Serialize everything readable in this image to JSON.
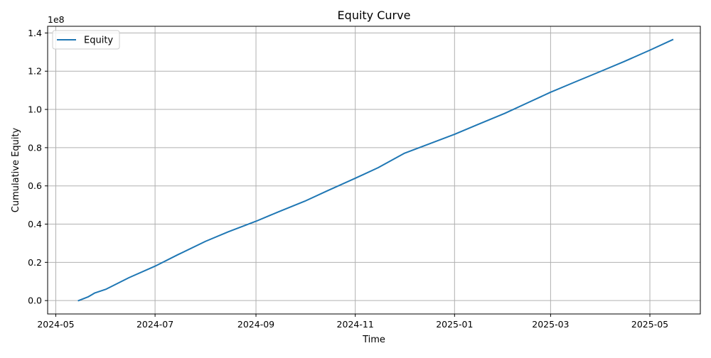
{
  "chart_data": {
    "type": "line",
    "title": "Equity Curve",
    "xlabel": "Time",
    "ylabel": "Cumulative Equity",
    "y_offset_text": "1e8",
    "xlim": [
      "2024-04-26",
      "2025-06-01"
    ],
    "ylim": [
      -0.07,
      1.435
    ],
    "x_ticks": [
      {
        "date": "2024-05-01",
        "label": "2024-05"
      },
      {
        "date": "2024-07-01",
        "label": "2024-07"
      },
      {
        "date": "2024-09-01",
        "label": "2024-09"
      },
      {
        "date": "2024-11-01",
        "label": "2024-11"
      },
      {
        "date": "2025-01-01",
        "label": "2025-01"
      },
      {
        "date": "2025-03-01",
        "label": "2025-03"
      },
      {
        "date": "2025-05-01",
        "label": "2025-05"
      }
    ],
    "y_ticks": [
      {
        "value": 0.0,
        "label": "0.0"
      },
      {
        "value": 0.2,
        "label": "0.2"
      },
      {
        "value": 0.4,
        "label": "0.4"
      },
      {
        "value": 0.6,
        "label": "0.6"
      },
      {
        "value": 0.8,
        "label": "0.8"
      },
      {
        "value": 1.0,
        "label": "1.0"
      },
      {
        "value": 1.2,
        "label": "1.2"
      },
      {
        "value": 1.4,
        "label": "1.4"
      }
    ],
    "grid": true,
    "legend": {
      "position": "top-left",
      "entries": [
        "Equity"
      ]
    },
    "series": [
      {
        "name": "Equity",
        "color": "#1f77b4",
        "x": [
          "2024-05-15",
          "2024-05-21",
          "2024-05-25",
          "2024-06-01",
          "2024-06-15",
          "2024-07-01",
          "2024-07-15",
          "2024-08-01",
          "2024-08-15",
          "2024-09-01",
          "2024-09-15",
          "2024-10-01",
          "2024-10-15",
          "2024-11-01",
          "2024-11-15",
          "2024-12-01",
          "2024-12-15",
          "2025-01-01",
          "2025-01-15",
          "2025-02-01",
          "2025-02-15",
          "2025-03-01",
          "2025-03-15",
          "2025-04-01",
          "2025-04-15",
          "2025-05-01",
          "2025-05-15"
        ],
        "y": [
          0.0,
          0.02,
          0.04,
          0.06,
          0.12,
          0.18,
          0.24,
          0.31,
          0.36,
          0.415,
          0.465,
          0.52,
          0.575,
          0.64,
          0.695,
          0.77,
          0.815,
          0.87,
          0.92,
          0.98,
          1.035,
          1.09,
          1.14,
          1.2,
          1.25,
          1.31,
          1.365
        ]
      }
    ]
  }
}
